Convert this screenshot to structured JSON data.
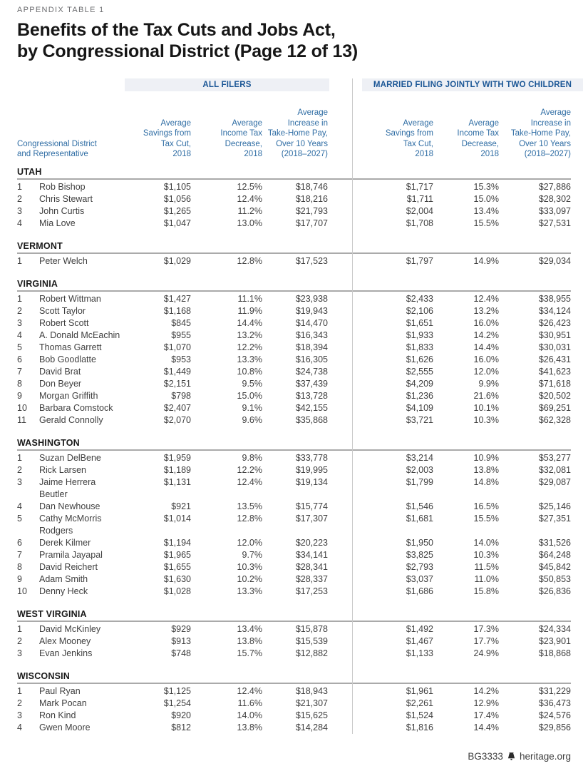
{
  "page": {
    "eyebrow": "APPENDIX TABLE 1",
    "title_line1": "Benefits of the Tax Cuts and Jobs Act,",
    "title_line2": "by Congressional District (Page 12 of 13)",
    "footer_id": "BG3333",
    "footer_site": "heritage.org"
  },
  "colors": {
    "accent_blue_dark": "#1c5796",
    "accent_blue": "#2f6da4",
    "group_bar_bg": "#eef0f5",
    "body_text": "#3f3f3f",
    "divider": "#c9c9c9"
  },
  "table": {
    "group_headers": [
      "ALL FILERS",
      "MARRIED FILING JOINTLY WITH TWO CHILDREN"
    ],
    "row_header": "Congressional District\nand Representative",
    "col_headers": [
      "Average\nSavings from\nTax Cut,\n2018",
      "Average\nIncome Tax\nDecrease,\n2018",
      "Average\nIncrease in\nTake-Home Pay,\nOver 10 Years\n(2018–2027)"
    ],
    "sections": [
      {
        "state": "UTAH",
        "rows": [
          {
            "district": "1",
            "name": "Rob Bishop",
            "values": [
              "$1,105",
              "12.5%",
              "$18,746",
              "$1,717",
              "15.3%",
              "$27,886"
            ]
          },
          {
            "district": "2",
            "name": "Chris Stewart",
            "values": [
              "$1,056",
              "12.4%",
              "$18,216",
              "$1,711",
              "15.0%",
              "$28,302"
            ]
          },
          {
            "district": "3",
            "name": "John Curtis",
            "values": [
              "$1,265",
              "11.2%",
              "$21,793",
              "$2,004",
              "13.4%",
              "$33,097"
            ]
          },
          {
            "district": "4",
            "name": "Mia Love",
            "values": [
              "$1,047",
              "13.0%",
              "$17,707",
              "$1,708",
              "15.5%",
              "$27,531"
            ]
          }
        ]
      },
      {
        "state": "VERMONT",
        "rows": [
          {
            "district": "1",
            "name": "Peter Welch",
            "values": [
              "$1,029",
              "12.8%",
              "$17,523",
              "$1,797",
              "14.9%",
              "$29,034"
            ]
          }
        ]
      },
      {
        "state": "VIRGINIA",
        "rows": [
          {
            "district": "1",
            "name": "Robert Wittman",
            "values": [
              "$1,427",
              "11.1%",
              "$23,938",
              "$2,433",
              "12.4%",
              "$38,955"
            ]
          },
          {
            "district": "2",
            "name": "Scott Taylor",
            "values": [
              "$1,168",
              "11.9%",
              "$19,943",
              "$2,106",
              "13.2%",
              "$34,124"
            ]
          },
          {
            "district": "3",
            "name": "Robert Scott",
            "values": [
              "$845",
              "14.4%",
              "$14,470",
              "$1,651",
              "16.0%",
              "$26,423"
            ]
          },
          {
            "district": "4",
            "name": "A. Donald McEachin",
            "values": [
              "$955",
              "13.2%",
              "$16,343",
              "$1,933",
              "14.2%",
              "$30,951"
            ]
          },
          {
            "district": "5",
            "name": "Thomas Garrett",
            "values": [
              "$1,070",
              "12.2%",
              "$18,394",
              "$1,833",
              "14.4%",
              "$30,031"
            ]
          },
          {
            "district": "6",
            "name": "Bob Goodlatte",
            "values": [
              "$953",
              "13.3%",
              "$16,305",
              "$1,626",
              "16.0%",
              "$26,431"
            ]
          },
          {
            "district": "7",
            "name": "David Brat",
            "values": [
              "$1,449",
              "10.8%",
              "$24,738",
              "$2,555",
              "12.0%",
              "$41,623"
            ]
          },
          {
            "district": "8",
            "name": "Don Beyer",
            "values": [
              "$2,151",
              "9.5%",
              "$37,439",
              "$4,209",
              "9.9%",
              "$71,618"
            ]
          },
          {
            "district": "9",
            "name": "Morgan Griffith",
            "values": [
              "$798",
              "15.0%",
              "$13,728",
              "$1,236",
              "21.6%",
              "$20,502"
            ]
          },
          {
            "district": "10",
            "name": "Barbara Comstock",
            "values": [
              "$2,407",
              "9.1%",
              "$42,155",
              "$4,109",
              "10.1%",
              "$69,251"
            ]
          },
          {
            "district": "11",
            "name": "Gerald Connolly",
            "values": [
              "$2,070",
              "9.6%",
              "$35,868",
              "$3,721",
              "10.3%",
              "$62,328"
            ]
          }
        ]
      },
      {
        "state": "WASHINGTON",
        "rows": [
          {
            "district": "1",
            "name": "Suzan DelBene",
            "values": [
              "$1,959",
              "9.8%",
              "$33,778",
              "$3,214",
              "10.9%",
              "$53,277"
            ]
          },
          {
            "district": "2",
            "name": "Rick Larsen",
            "values": [
              "$1,189",
              "12.2%",
              "$19,995",
              "$2,003",
              "13.8%",
              "$32,081"
            ]
          },
          {
            "district": "3",
            "name": "Jaime Herrera\nBeutler",
            "values": [
              "$1,131",
              "12.4%",
              "$19,134",
              "$1,799",
              "14.8%",
              "$29,087"
            ]
          },
          {
            "district": "4",
            "name": "Dan Newhouse",
            "values": [
              "$921",
              "13.5%",
              "$15,774",
              "$1,546",
              "16.5%",
              "$25,146"
            ]
          },
          {
            "district": "5",
            "name": "Cathy McMorris\nRodgers",
            "values": [
              "$1,014",
              "12.8%",
              "$17,307",
              "$1,681",
              "15.5%",
              "$27,351"
            ]
          },
          {
            "district": "6",
            "name": "Derek Kilmer",
            "values": [
              "$1,194",
              "12.0%",
              "$20,223",
              "$1,950",
              "14.0%",
              "$31,526"
            ]
          },
          {
            "district": "7",
            "name": "Pramila Jayapal",
            "values": [
              "$1,965",
              "9.7%",
              "$34,141",
              "$3,825",
              "10.3%",
              "$64,248"
            ]
          },
          {
            "district": "8",
            "name": "David Reichert",
            "values": [
              "$1,655",
              "10.3%",
              "$28,341",
              "$2,793",
              "11.5%",
              "$45,842"
            ]
          },
          {
            "district": "9",
            "name": "Adam Smith",
            "values": [
              "$1,630",
              "10.2%",
              "$28,337",
              "$3,037",
              "11.0%",
              "$50,853"
            ]
          },
          {
            "district": "10",
            "name": "Denny Heck",
            "values": [
              "$1,028",
              "13.3%",
              "$17,253",
              "$1,686",
              "15.8%",
              "$26,836"
            ]
          }
        ]
      },
      {
        "state": "WEST VIRGINIA",
        "rows": [
          {
            "district": "1",
            "name": "David McKinley",
            "values": [
              "$929",
              "13.4%",
              "$15,878",
              "$1,492",
              "17.3%",
              "$24,334"
            ]
          },
          {
            "district": "2",
            "name": "Alex Mooney",
            "values": [
              "$913",
              "13.8%",
              "$15,539",
              "$1,467",
              "17.7%",
              "$23,901"
            ]
          },
          {
            "district": "3",
            "name": "Evan Jenkins",
            "values": [
              "$748",
              "15.7%",
              "$12,882",
              "$1,133",
              "24.9%",
              "$18,868"
            ]
          }
        ]
      },
      {
        "state": "WISCONSIN",
        "rows": [
          {
            "district": "1",
            "name": "Paul Ryan",
            "values": [
              "$1,125",
              "12.4%",
              "$18,943",
              "$1,961",
              "14.2%",
              "$31,229"
            ]
          },
          {
            "district": "2",
            "name": "Mark Pocan",
            "values": [
              "$1,254",
              "11.6%",
              "$21,307",
              "$2,261",
              "12.9%",
              "$36,473"
            ]
          },
          {
            "district": "3",
            "name": "Ron Kind",
            "values": [
              "$920",
              "14.0%",
              "$15,625",
              "$1,524",
              "17.4%",
              "$24,576"
            ]
          },
          {
            "district": "4",
            "name": "Gwen Moore",
            "values": [
              "$812",
              "13.8%",
              "$14,284",
              "$1,816",
              "14.4%",
              "$29,856"
            ]
          }
        ]
      }
    ]
  }
}
